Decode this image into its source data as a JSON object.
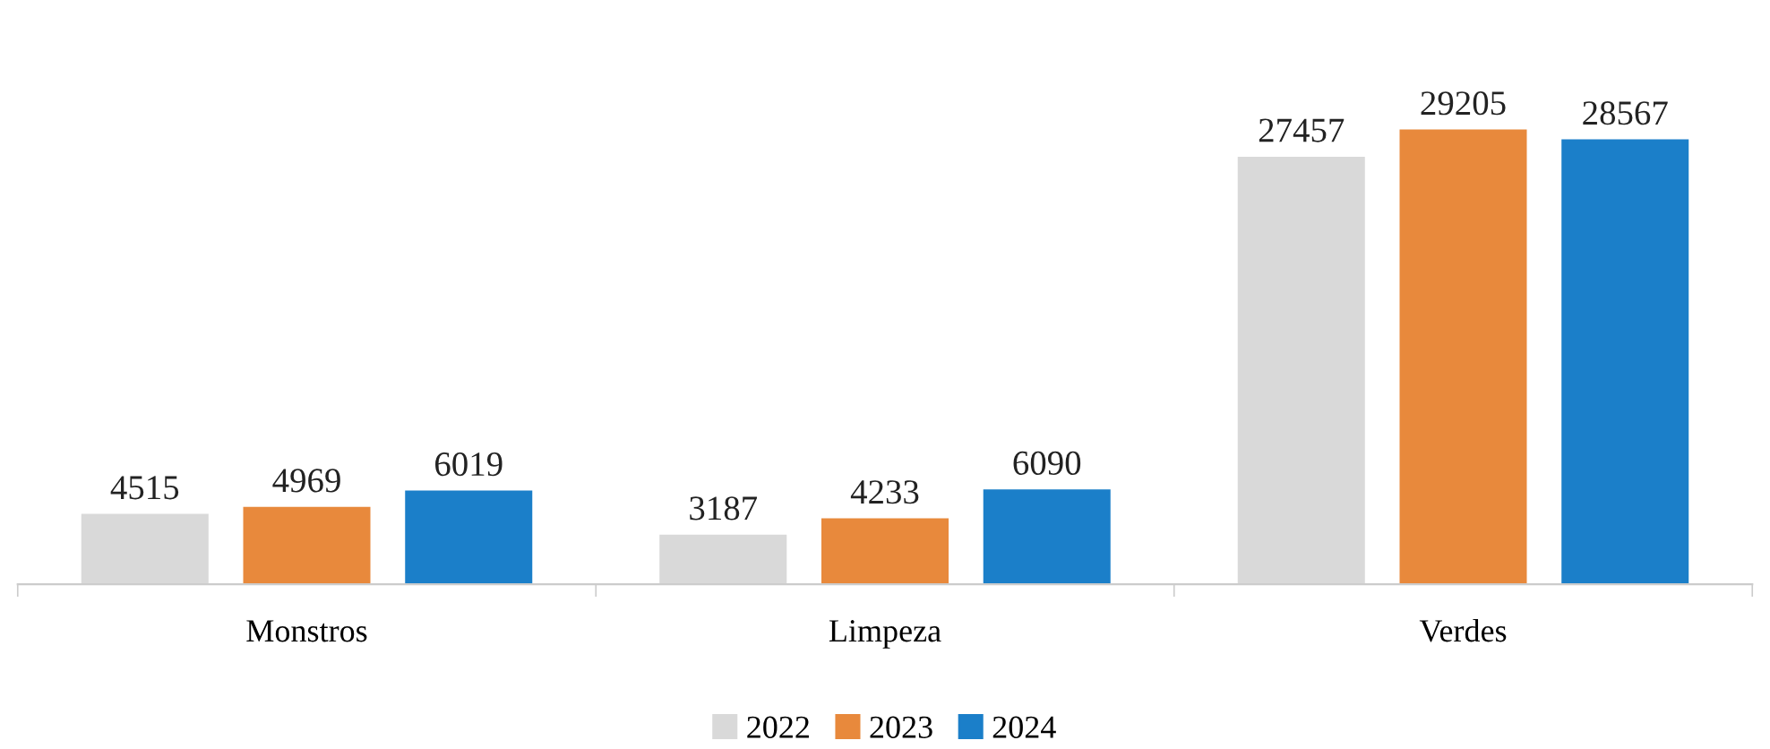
{
  "chart_data": {
    "type": "bar",
    "categories": [
      "Monstros",
      "Limpeza",
      "Verdes"
    ],
    "series": [
      {
        "name": "2022",
        "color": "#d9d9d9",
        "values": [
          4515,
          3187,
          27457
        ]
      },
      {
        "name": "2023",
        "color": "#e8893c",
        "values": [
          4969,
          4233,
          29205
        ]
      },
      {
        "name": "2024",
        "color": "#1b7fc9",
        "values": [
          6019,
          6090,
          28567
        ]
      }
    ],
    "data_labels": true,
    "legend": "bottom",
    "grid": false
  }
}
